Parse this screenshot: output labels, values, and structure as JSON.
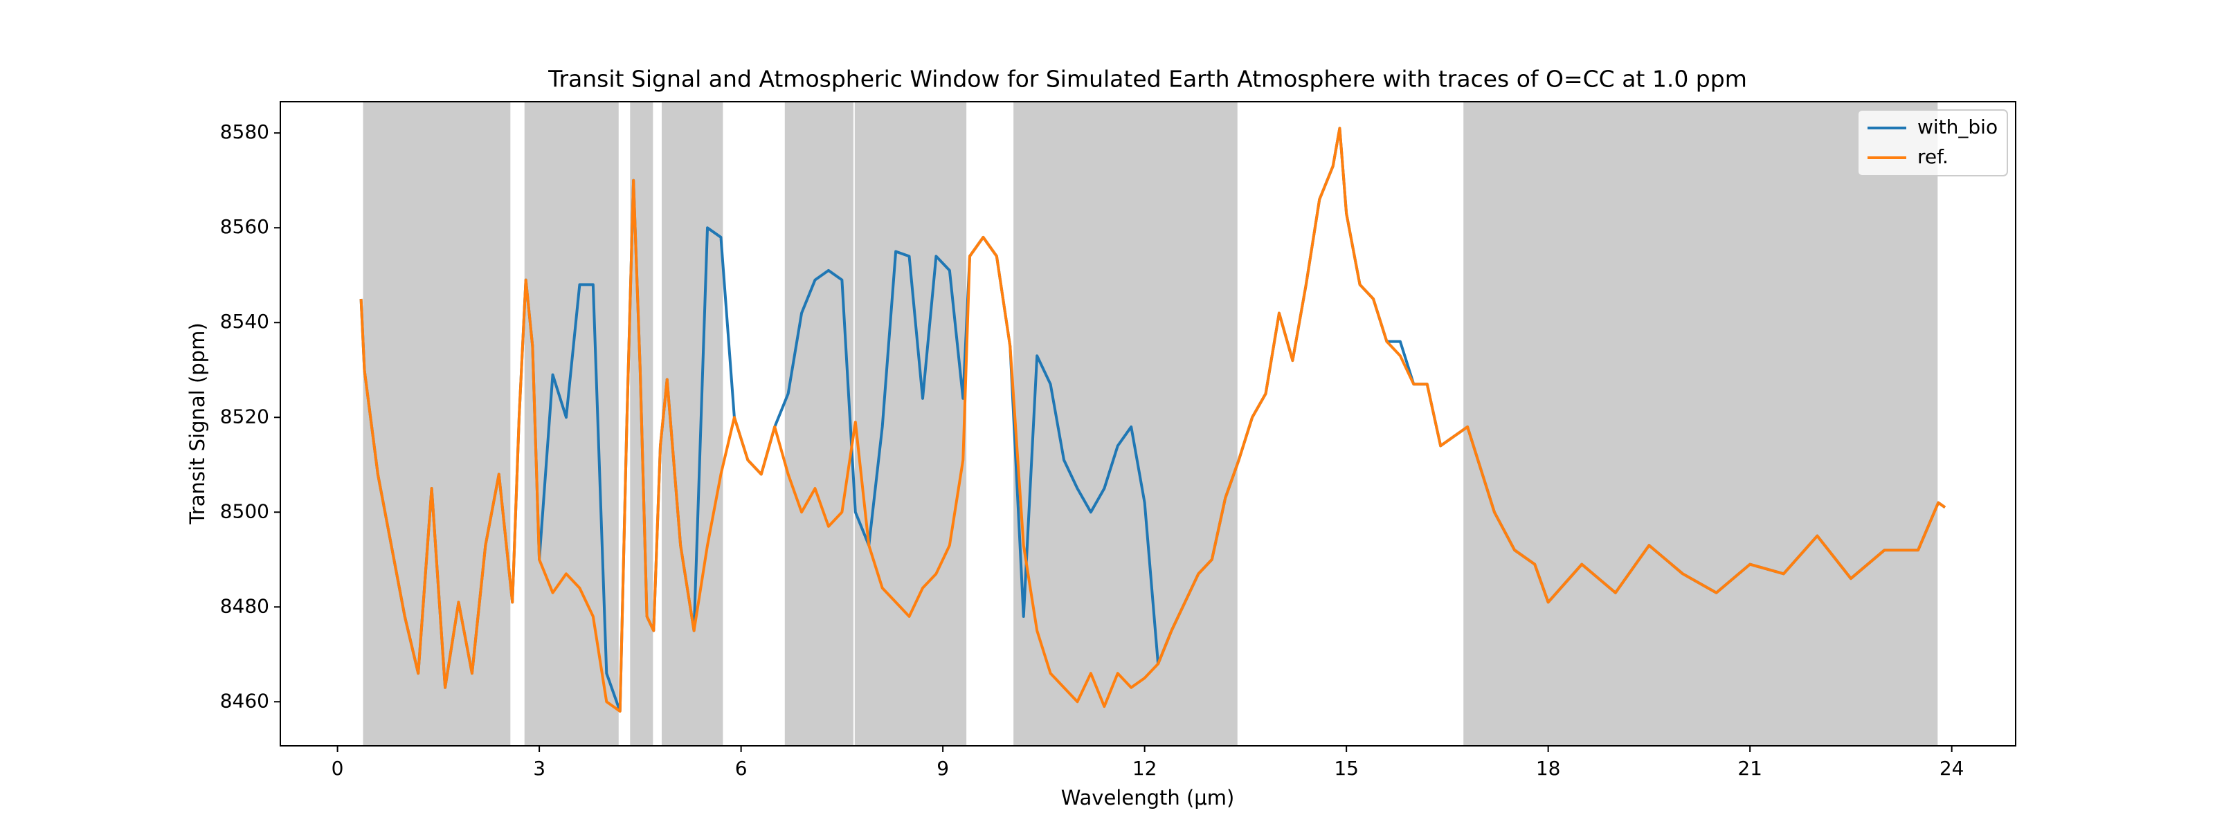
{
  "chart_data": {
    "type": "line",
    "title": "Transit Signal and Atmospheric Window for Simulated Earth Atmosphere with traces of O=CC at 1.0 ppm",
    "x_label": "Wavelength (μm)",
    "y_label": "Transit Signal (ppm)",
    "xlim": [
      -0.85,
      24.95
    ],
    "ylim": [
      8450.7,
      8586.6
    ],
    "xticks": [
      0,
      3,
      6,
      9,
      12,
      15,
      18,
      21,
      24
    ],
    "yticks": [
      8460,
      8480,
      8500,
      8520,
      8540,
      8560,
      8580
    ],
    "legend": "upper right",
    "window_color": "#cccccc",
    "windows": [
      [
        0.38,
        2.57
      ],
      [
        2.78,
        4.18
      ],
      [
        4.35,
        4.69
      ],
      [
        4.82,
        5.73
      ],
      [
        6.65,
        7.67
      ],
      [
        7.69,
        9.35
      ],
      [
        10.05,
        13.38
      ],
      [
        16.74,
        23.79
      ]
    ],
    "x": [
      0.35,
      0.4,
      0.6,
      0.8,
      1.0,
      1.2,
      1.4,
      1.6,
      1.8,
      2.0,
      2.2,
      2.4,
      2.6,
      2.7,
      2.8,
      2.9,
      3.0,
      3.2,
      3.4,
      3.6,
      3.8,
      4.0,
      4.2,
      4.3,
      4.4,
      4.5,
      4.6,
      4.7,
      4.8,
      4.9,
      5.1,
      5.3,
      5.5,
      5.7,
      5.9,
      6.1,
      6.3,
      6.5,
      6.7,
      6.9,
      7.1,
      7.3,
      7.5,
      7.7,
      7.9,
      8.1,
      8.3,
      8.5,
      8.7,
      8.9,
      9.1,
      9.3,
      9.4,
      9.6,
      9.8,
      10.0,
      10.2,
      10.4,
      10.6,
      10.8,
      11.0,
      11.2,
      11.4,
      11.6,
      11.8,
      12.0,
      12.2,
      12.4,
      12.6,
      12.8,
      13.0,
      13.2,
      13.4,
      13.6,
      13.8,
      14.0,
      14.2,
      14.4,
      14.6,
      14.8,
      14.9,
      15.0,
      15.2,
      15.4,
      15.6,
      15.8,
      16.0,
      16.2,
      16.4,
      16.6,
      16.8,
      17.0,
      17.2,
      17.5,
      17.8,
      18.0,
      18.5,
      19.0,
      19.5,
      20.0,
      20.5,
      21.0,
      21.5,
      22.0,
      22.5,
      23.0,
      23.5,
      23.8,
      23.9
    ],
    "series": [
      {
        "name": "with_bio",
        "color": "#1f77b4",
        "values": [
          8545,
          8530,
          8508,
          8493,
          8478,
          8466,
          8505,
          8463,
          8481,
          8466,
          8493,
          8508,
          8481,
          8520,
          8549,
          8535,
          8490,
          8529,
          8520,
          8548,
          8548,
          8466,
          8458,
          8518,
          8570,
          8530,
          8478,
          8475,
          8514,
          8528,
          8493,
          8475,
          8560,
          8558,
          8520,
          8511,
          8508,
          8518,
          8525,
          8542,
          8549,
          8551,
          8549,
          8500,
          8493,
          8518,
          8555,
          8554,
          8524,
          8554,
          8551,
          8524,
          8554,
          8558,
          8554,
          8535,
          8478,
          8533,
          8527,
          8511,
          8505,
          8500,
          8505,
          8514,
          8518,
          8502,
          8468,
          8475,
          8481,
          8487,
          8490,
          8503,
          8511,
          8520,
          8525,
          8542,
          8532,
          8548,
          8566,
          8573,
          8581,
          8563,
          8548,
          8545,
          8536,
          8536,
          8527,
          8527,
          8514,
          8516,
          8518,
          8509,
          8500,
          8492,
          8489,
          8481,
          8489,
          8483,
          8493,
          8487,
          8483,
          8489,
          8487,
          8495,
          8486,
          8492,
          8492,
          8502,
          8501
        ]
      },
      {
        "name": "ref.",
        "color": "#ff7f0e",
        "values": [
          8545,
          8530,
          8508,
          8493,
          8478,
          8466,
          8505,
          8463,
          8481,
          8466,
          8493,
          8508,
          8481,
          8520,
          8549,
          8535,
          8490,
          8483,
          8487,
          8484,
          8478,
          8460,
          8458,
          8518,
          8570,
          8530,
          8478,
          8475,
          8514,
          8528,
          8493,
          8475,
          8493,
          8508,
          8520,
          8511,
          8508,
          8518,
          8508,
          8500,
          8505,
          8497,
          8500,
          8519,
          8493,
          8484,
          8481,
          8478,
          8484,
          8487,
          8493,
          8511,
          8554,
          8558,
          8554,
          8535,
          8493,
          8475,
          8466,
          8463,
          8460,
          8466,
          8459,
          8466,
          8463,
          8465,
          8468,
          8475,
          8481,
          8487,
          8490,
          8503,
          8511,
          8520,
          8525,
          8542,
          8532,
          8548,
          8566,
          8573,
          8581,
          8563,
          8548,
          8545,
          8536,
          8533,
          8527,
          8527,
          8514,
          8516,
          8518,
          8509,
          8500,
          8492,
          8489,
          8481,
          8489,
          8483,
          8493,
          8487,
          8483,
          8489,
          8487,
          8495,
          8486,
          8492,
          8492,
          8502,
          8501
        ]
      }
    ]
  }
}
